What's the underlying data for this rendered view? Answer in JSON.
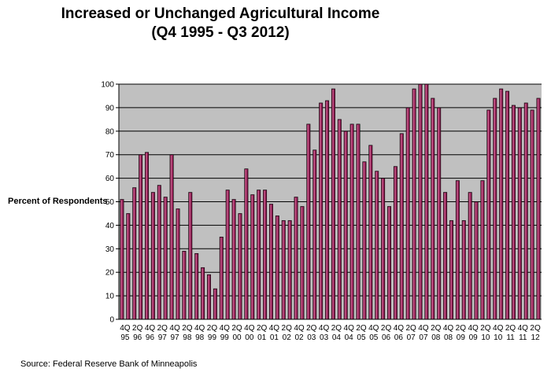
{
  "chart_data": {
    "type": "bar",
    "title": [
      "Increased or Unchanged Agricultural Income",
      "(Q4 1995 - Q3 2012)"
    ],
    "ylabel": "Percent of Respondents",
    "xlabel": "",
    "ylim": [
      0,
      100
    ],
    "yticks": [
      0,
      10,
      20,
      30,
      40,
      50,
      60,
      70,
      80,
      90,
      100
    ],
    "grid": true,
    "legend": "none",
    "bar_color": "#8b1a4f",
    "plot_background": "#c0c0c0",
    "x_tick_labels": [
      [
        "4Q",
        "95"
      ],
      [
        "2Q",
        "96"
      ],
      [
        "4Q",
        "96"
      ],
      [
        "2Q",
        "97"
      ],
      [
        "4Q",
        "97"
      ],
      [
        "2Q",
        "98"
      ],
      [
        "4Q",
        "98"
      ],
      [
        "2Q",
        "99"
      ],
      [
        "4Q",
        "99"
      ],
      [
        "2Q",
        "00"
      ],
      [
        "4Q",
        "00"
      ],
      [
        "2Q",
        "01"
      ],
      [
        "4Q",
        "01"
      ],
      [
        "2Q",
        "02"
      ],
      [
        "4Q",
        "02"
      ],
      [
        "2Q",
        "03"
      ],
      [
        "4Q",
        "03"
      ],
      [
        "2Q",
        "04"
      ],
      [
        "4Q",
        "04"
      ],
      [
        "2Q",
        "05"
      ],
      [
        "4Q",
        "05"
      ],
      [
        "2Q",
        "06"
      ],
      [
        "4Q",
        "06"
      ],
      [
        "2Q",
        "07"
      ],
      [
        "4Q",
        "07"
      ],
      [
        "2Q",
        "08"
      ],
      [
        "4Q",
        "08"
      ],
      [
        "2Q",
        "09"
      ],
      [
        "4Q",
        "09"
      ],
      [
        "2Q",
        "10"
      ],
      [
        "4Q",
        "10"
      ],
      [
        "2Q",
        "11"
      ],
      [
        "4Q",
        "11"
      ],
      [
        "2Q",
        "12"
      ]
    ],
    "values": [
      51,
      45,
      56,
      70,
      71,
      54,
      57,
      52,
      70,
      47,
      29,
      54,
      28,
      22,
      19,
      13,
      35,
      55,
      51,
      45,
      64,
      53,
      55,
      55,
      49,
      44,
      42,
      42,
      52,
      48,
      83,
      72,
      92,
      93,
      98,
      85,
      80,
      83,
      83,
      67,
      74,
      63,
      60,
      48,
      65,
      79,
      90,
      98,
      100,
      100,
      94,
      90,
      54,
      42,
      59,
      42,
      54,
      50,
      59,
      89,
      94,
      98,
      97,
      91,
      90,
      92,
      89,
      94
    ]
  },
  "source": "Source: Federal Reserve Bank of Minneapolis"
}
